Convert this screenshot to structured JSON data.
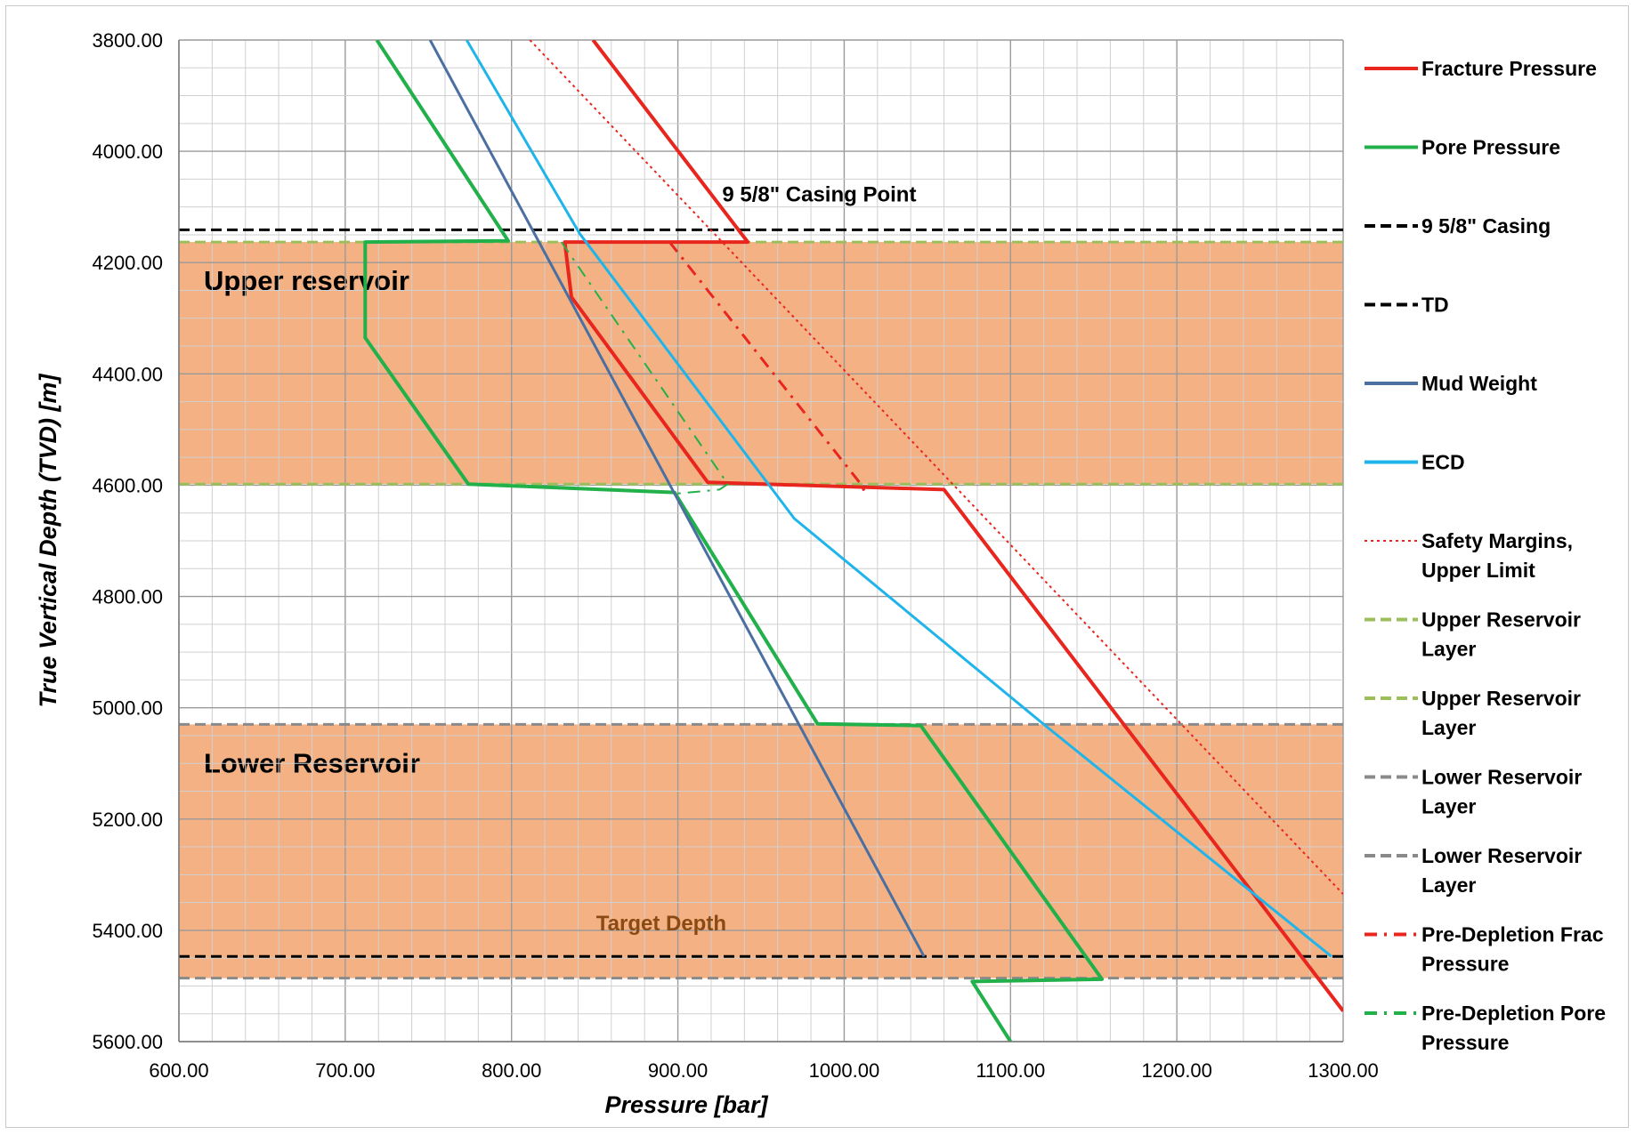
{
  "chart_data": {
    "type": "line",
    "xlabel": "Pressure  [bar]",
    "ylabel": "True Vertical Depth (TVD) [m]",
    "xlim": [
      600,
      1300
    ],
    "ylim": [
      3800,
      5600
    ],
    "y_inverted": true,
    "grid": true,
    "legend_position": "right",
    "x_tick_labels": [
      "600.00",
      "700.00",
      "800.00",
      "900.00",
      "1000.00",
      "1100.00",
      "1200.00",
      "1300.00"
    ],
    "y_tick_labels": [
      "3800.00",
      "4000.00",
      "4200.00",
      "4400.00",
      "4600.00",
      "4800.00",
      "5000.00",
      "5200.00",
      "5400.00",
      "5600.00"
    ],
    "zones": [
      {
        "label": "Upper reservoir",
        "top": 4163,
        "bottom": 4598,
        "color": "#f4b183"
      },
      {
        "label": "Lower Reservoir",
        "top": 5030,
        "bottom": 5486,
        "color": "#f4b183"
      }
    ],
    "annotations": [
      {
        "text": "9 5/8\" Casing Point",
        "x": 985,
        "y": 4090
      },
      {
        "text": "Target Depth",
        "x": 890,
        "y": 5400
      }
    ],
    "series": [
      {
        "name": "Fracture Pressure",
        "color": "#e8261e",
        "style": "solid",
        "width": 4,
        "points": [
          [
            849,
            3800
          ],
          [
            942,
            4163
          ],
          [
            845,
            4163
          ],
          [
            832,
            4163
          ],
          [
            836,
            4262
          ],
          [
            918,
            4595
          ],
          [
            1060,
            4608
          ],
          [
            1300,
            5545
          ]
        ]
      },
      {
        "name": "Pore Pressure",
        "color": "#22b04b",
        "style": "solid",
        "width": 4,
        "points": [
          [
            719,
            3800
          ],
          [
            798,
            4161
          ],
          [
            712,
            4163
          ],
          [
            712,
            4335
          ],
          [
            774,
            4598
          ],
          [
            898,
            4613
          ],
          [
            984,
            5029
          ],
          [
            1046,
            5032
          ],
          [
            1155,
            5488
          ],
          [
            1077,
            5492
          ],
          [
            1100,
            5600
          ]
        ]
      },
      {
        "name": "9 5/8\" Casing",
        "color": "#000000",
        "style": "dashed",
        "width": 3,
        "horizontal_at": 4141
      },
      {
        "name": "TD",
        "color": "#000000",
        "style": "dashed",
        "width": 3,
        "horizontal_at": 5447
      },
      {
        "name": "Mud Weight",
        "color": "#4a6fa0",
        "style": "solid",
        "width": 3,
        "points": [
          [
            751,
            3800
          ],
          [
            1048,
            5447
          ]
        ]
      },
      {
        "name": "ECD",
        "color": "#1fb4ea",
        "style": "solid",
        "width": 3,
        "points": [
          [
            773,
            3800
          ],
          [
            841,
            4148
          ],
          [
            970,
            4660
          ],
          [
            1120,
            5030
          ],
          [
            1293,
            5447
          ]
        ]
      },
      {
        "name": "Safety Margins, Upper Limit",
        "color": "#e8261e",
        "style": "dotted",
        "width": 2,
        "points": [
          [
            811,
            3800
          ],
          [
            1300,
            5335
          ]
        ]
      },
      {
        "name": "Upper Reservoir Layer",
        "color": "#9cbf5c",
        "style": "dashed",
        "width": 3,
        "horizontal_at": 4163
      },
      {
        "name": "Upper Reservoir Layer",
        "color": "#9cbf5c",
        "style": "dashed",
        "width": 3,
        "horizontal_at": 4598
      },
      {
        "name": "Lower Reservoir Layer",
        "color": "#8a8a8a",
        "style": "dashed",
        "width": 3,
        "horizontal_at": 5030
      },
      {
        "name": "Lower Reservoir Layer",
        "color": "#8a8a8a",
        "style": "dashed",
        "width": 3,
        "horizontal_at": 5486
      },
      {
        "name": "Pre-Depletion Frac Pressure",
        "color": "#e8261e",
        "style": "dashdot",
        "width": 3,
        "points": [
          [
            895,
            4163
          ],
          [
            1010,
            4598
          ],
          [
            1012,
            4610
          ]
        ]
      },
      {
        "name": "Pre-Depletion Pore Pressure",
        "color": "#22b04b",
        "style": "dashdot",
        "width": 2,
        "points": [
          [
            830,
            4163
          ],
          [
            930,
            4598
          ],
          [
            925,
            4608
          ],
          [
            900,
            4615
          ]
        ]
      }
    ],
    "legend_entries": [
      {
        "label_lines": [
          "Fracture Pressure"
        ],
        "color": "#e8261e",
        "style": "solid"
      },
      {
        "label_lines": [
          "Pore Pressure"
        ],
        "color": "#22b04b",
        "style": "solid"
      },
      {
        "label_lines": [
          "9 5/8\" Casing"
        ],
        "color": "#000000",
        "style": "dashed"
      },
      {
        "label_lines": [
          "TD"
        ],
        "color": "#000000",
        "style": "dashed"
      },
      {
        "label_lines": [
          "Mud Weight"
        ],
        "color": "#4a6fa0",
        "style": "solid"
      },
      {
        "label_lines": [
          "ECD"
        ],
        "color": "#1fb4ea",
        "style": "solid"
      },
      {
        "label_lines": [
          "Safety Margins,",
          "Upper Limit"
        ],
        "color": "#e8261e",
        "style": "dotted"
      },
      {
        "label_lines": [
          "Upper Reservoir",
          "Layer"
        ],
        "color": "#9cbf5c",
        "style": "dashed"
      },
      {
        "label_lines": [
          "Upper Reservoir",
          "Layer"
        ],
        "color": "#9cbf5c",
        "style": "dashed"
      },
      {
        "label_lines": [
          "Lower Reservoir",
          "Layer"
        ],
        "color": "#8a8a8a",
        "style": "dashed"
      },
      {
        "label_lines": [
          "Lower Reservoir",
          "Layer"
        ],
        "color": "#8a8a8a",
        "style": "dashed"
      },
      {
        "label_lines": [
          "Pre-Depletion Frac",
          "Pressure"
        ],
        "color": "#e8261e",
        "style": "dashdot"
      },
      {
        "label_lines": [
          "Pre-Depletion Pore",
          "Pressure"
        ],
        "color": "#22b04b",
        "style": "dashdot"
      }
    ]
  }
}
